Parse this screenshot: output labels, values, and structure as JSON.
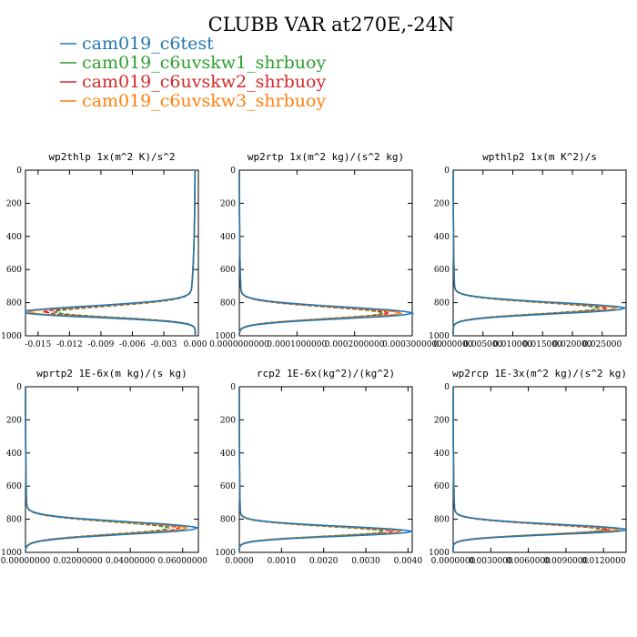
{
  "title": "CLUBB VAR at270E,-24N",
  "legend": [
    {
      "label": "cam019_c6test",
      "color": "#1f77b4"
    },
    {
      "label": "cam019_c6uvskw1_shrbuoy",
      "color": "#2ca02c"
    },
    {
      "label": "cam019_c6uvskw2_shrbuoy",
      "color": "#d62728"
    },
    {
      "label": "cam019_c6uvskw3_shrbuoy",
      "color": "#ff7f0e"
    }
  ],
  "chart_data": [
    {
      "type": "line",
      "title": "wp2thlp  1x(m^2 K)/s^2",
      "ylim": [
        1000,
        0
      ],
      "yticks": [
        0,
        200,
        400,
        600,
        800,
        1000
      ],
      "xlim": [
        -0.0162,
        0.0003
      ],
      "xticks": [
        -0.015,
        -0.012,
        -0.009,
        -0.006,
        -0.003,
        0.0
      ],
      "xticklabels": [
        "-0.015",
        "-0.012",
        "-0.009",
        "-0.006",
        "-0.003",
        "0.000"
      ],
      "profile": {
        "base": 0,
        "peak_level": 860,
        "lower_width": 40,
        "upper_width": 55,
        "tail_amp": 0.0006,
        "tail_scale": 260
      },
      "series": [
        {
          "name": "cam019_c6test",
          "peak": -0.0162
        },
        {
          "name": "cam019_c6uvskw1_shrbuoy",
          "peak": -0.013
        },
        {
          "name": "cam019_c6uvskw2_shrbuoy",
          "peak": -0.014
        },
        {
          "name": "cam019_c6uvskw3_shrbuoy",
          "peak": -0.0155
        }
      ]
    },
    {
      "type": "line",
      "title": "wp2rtp  1x(m^2 kg)/(s^2 kg)",
      "ylim": [
        1000,
        0
      ],
      "yticks": [
        0,
        200,
        400,
        600,
        800,
        1000
      ],
      "xlim": [
        0,
        0.0003
      ],
      "xticks": [
        0,
        0.0001,
        0.0002,
        0.0003
      ],
      "xticklabels": [
        "0.0000000000",
        "0.0001000000",
        "0.0002000000",
        "0.0003000000"
      ],
      "profile": {
        "base": 0,
        "peak_level": 865,
        "lower_width": 45,
        "upper_width": 55,
        "tail_amp": 5e-06,
        "tail_scale": 220
      },
      "series": [
        {
          "name": "cam019_c6test",
          "peak": 0.000295
        },
        {
          "name": "cam019_c6uvskw1_shrbuoy",
          "peak": 0.000245
        },
        {
          "name": "cam019_c6uvskw2_shrbuoy",
          "peak": 0.000255
        },
        {
          "name": "cam019_c6uvskw3_shrbuoy",
          "peak": 0.000275
        }
      ]
    },
    {
      "type": "line",
      "title": "wpthlp2  1x(m K^2)/s",
      "ylim": [
        1000,
        0
      ],
      "yticks": [
        0,
        200,
        400,
        600,
        800,
        1000
      ],
      "xlim": [
        0,
        0.029
      ],
      "xticks": [
        0,
        0.005,
        0.01,
        0.015,
        0.02,
        0.025
      ],
      "xticklabels": [
        "0.000000",
        "0.005000",
        "0.010000",
        "0.015000",
        "0.020000",
        "0.025000"
      ],
      "profile": {
        "base": 0,
        "peak_level": 835,
        "lower_width": 45,
        "upper_width": 50,
        "tail_amp": 0.0004,
        "tail_scale": 220
      },
      "series": [
        {
          "name": "cam019_c6test",
          "peak": 0.0285
        },
        {
          "name": "cam019_c6uvskw1_shrbuoy",
          "peak": 0.024
        },
        {
          "name": "cam019_c6uvskw2_shrbuoy",
          "peak": 0.0255
        },
        {
          "name": "cam019_c6uvskw3_shrbuoy",
          "peak": 0.027
        }
      ]
    },
    {
      "type": "line",
      "title": "wprtp2  1E-6x(m kg)/(s kg)",
      "ylim": [
        1000,
        0
      ],
      "yticks": [
        0,
        200,
        400,
        600,
        800,
        1000
      ],
      "xlim": [
        0,
        0.066
      ],
      "xticks": [
        0,
        0.02,
        0.04,
        0.06
      ],
      "xticklabels": [
        "0.00000000",
        "0.02000000",
        "0.04000000",
        "0.06000000"
      ],
      "profile": {
        "base": 0,
        "peak_level": 855,
        "lower_width": 50,
        "upper_width": 55,
        "tail_amp": 0.0008,
        "tail_scale": 220
      },
      "series": [
        {
          "name": "cam019_c6test",
          "peak": 0.065
        },
        {
          "name": "cam019_c6uvskw1_shrbuoy",
          "peak": 0.054
        },
        {
          "name": "cam019_c6uvskw2_shrbuoy",
          "peak": 0.058
        },
        {
          "name": "cam019_c6uvskw3_shrbuoy",
          "peak": 0.061
        }
      ]
    },
    {
      "type": "line",
      "title": "rcp2  1E-6x(kg^2)/(kg^2)",
      "ylim": [
        1000,
        0
      ],
      "yticks": [
        0,
        200,
        400,
        600,
        800,
        1000
      ],
      "xlim": [
        0,
        0.0041
      ],
      "xticks": [
        0,
        0.001,
        0.002,
        0.003,
        0.004
      ],
      "xticklabels": [
        "0.0000",
        "0.0010",
        "0.0020",
        "0.0030",
        "0.0040"
      ],
      "profile": {
        "base": 0,
        "peak_level": 875,
        "lower_width": 38,
        "upper_width": 45,
        "tail_amp": 4e-05,
        "tail_scale": 200
      },
      "series": [
        {
          "name": "cam019_c6test",
          "peak": 0.00405
        },
        {
          "name": "cam019_c6uvskw1_shrbuoy",
          "peak": 0.0034
        },
        {
          "name": "cam019_c6uvskw2_shrbuoy",
          "peak": 0.0036
        },
        {
          "name": "cam019_c6uvskw3_shrbuoy",
          "peak": 0.0038
        }
      ]
    },
    {
      "type": "line",
      "title": "wp2rcp  1E-3x(m^2 kg)/(s^2 kg)",
      "ylim": [
        1000,
        0
      ],
      "yticks": [
        0,
        200,
        400,
        600,
        800,
        1000
      ],
      "xlim": [
        0,
        0.0138
      ],
      "xticks": [
        0,
        0.003,
        0.006,
        0.009,
        0.012
      ],
      "xticklabels": [
        "0.0000000",
        "0.0030000",
        "0.0060000",
        "0.0090000",
        "0.0120000"
      ],
      "profile": {
        "base": 0,
        "peak_level": 865,
        "lower_width": 38,
        "upper_width": 48,
        "tail_amp": 0.0002,
        "tail_scale": 200
      },
      "series": [
        {
          "name": "cam019_c6test",
          "peak": 0.0137
        },
        {
          "name": "cam019_c6uvskw1_shrbuoy",
          "peak": 0.0118
        },
        {
          "name": "cam019_c6uvskw2_shrbuoy",
          "peak": 0.0122
        },
        {
          "name": "cam019_c6uvskw3_shrbuoy",
          "peak": 0.013
        }
      ]
    }
  ]
}
